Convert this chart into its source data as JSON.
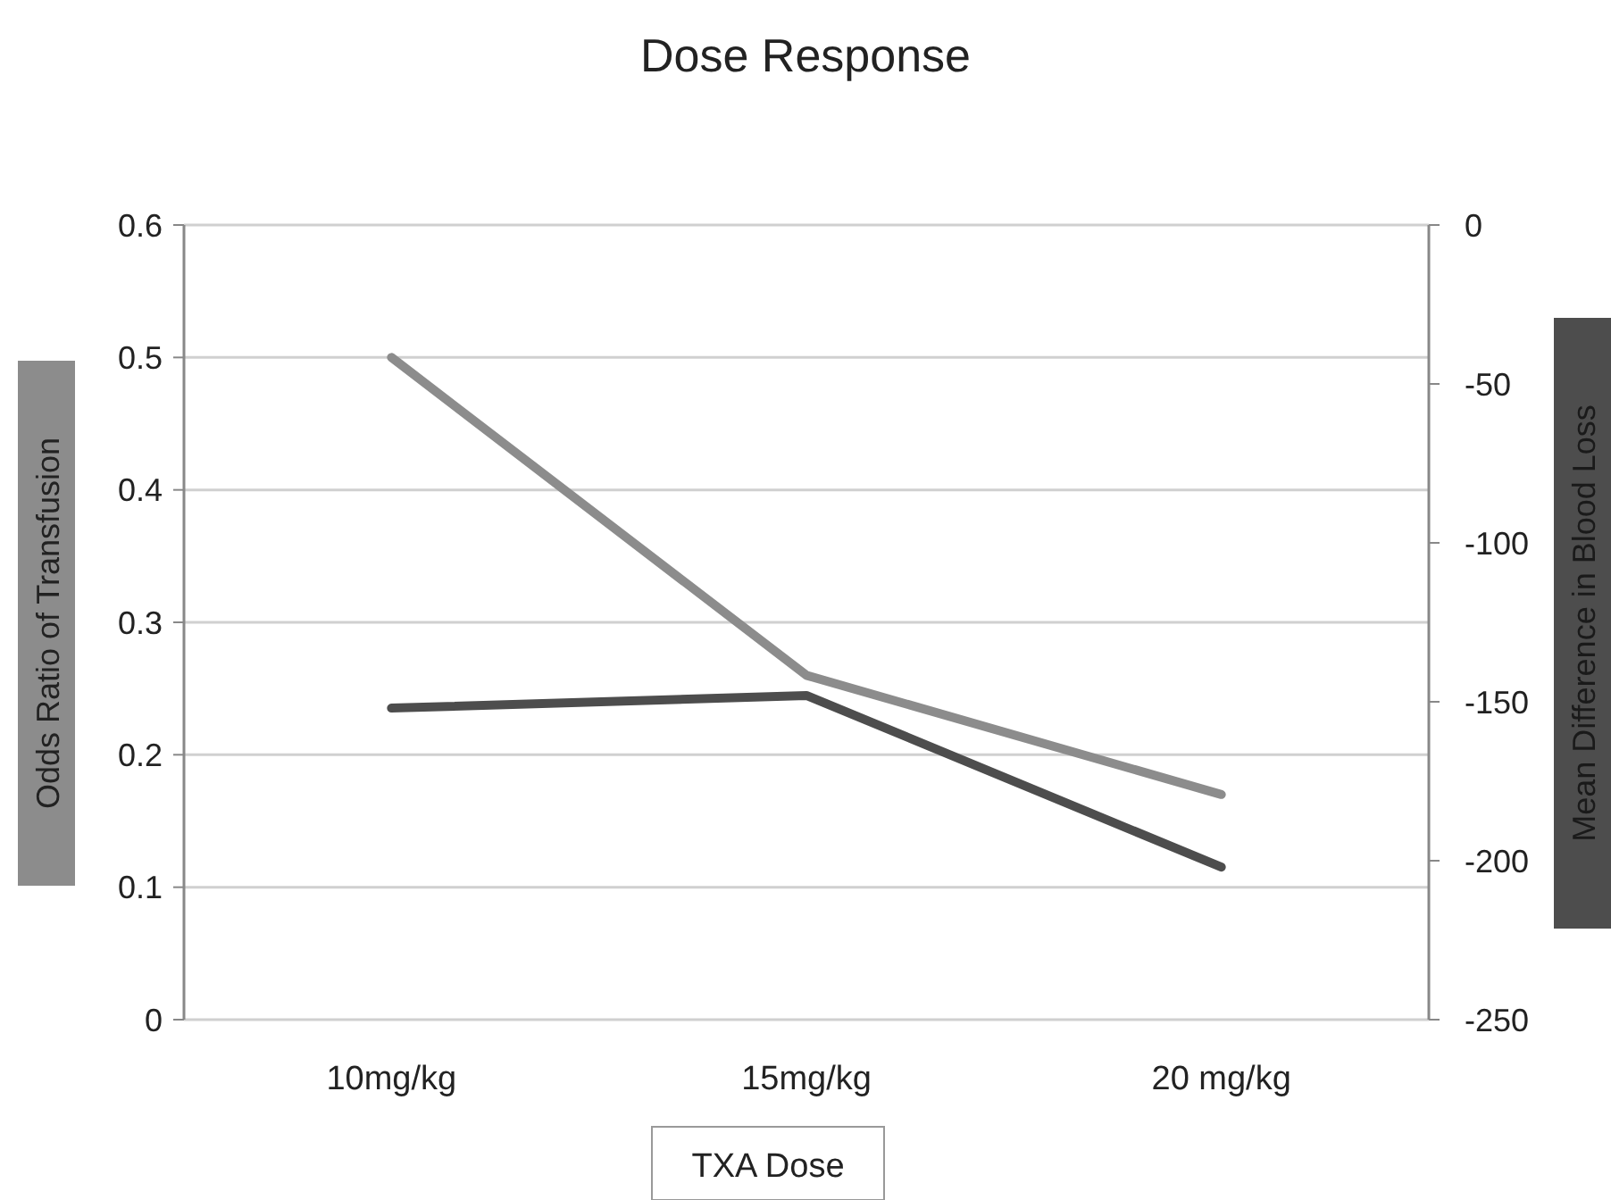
{
  "chart_data": {
    "type": "line",
    "title": "Dose Response",
    "xlabel": "TXA Dose",
    "ylabel": "Odds Ratio of Transfusion",
    "y2label": "Mean Difference in Blood Loss",
    "categories": [
      "10mg/kg",
      "15mg/kg",
      "20 mg/kg"
    ],
    "series": [
      {
        "color": "#8c8c8c",
        "values": [
          0.5,
          0.26,
          0.17
        ]
      },
      {
        "color": "#4d4d4d",
        "values": [
          -152,
          -148,
          -202
        ],
        "axis": "y2"
      }
    ],
    "ylim": [
      0,
      0.6
    ],
    "yticks": [
      0,
      0.1,
      0.2,
      0.3,
      0.4,
      0.5,
      0.6
    ],
    "y2lim": [
      -250,
      0
    ],
    "y2ticks": [
      -250,
      -200,
      -150,
      -100,
      -50,
      0
    ],
    "grid": "y",
    "marker": "none",
    "line_style": "solid"
  }
}
